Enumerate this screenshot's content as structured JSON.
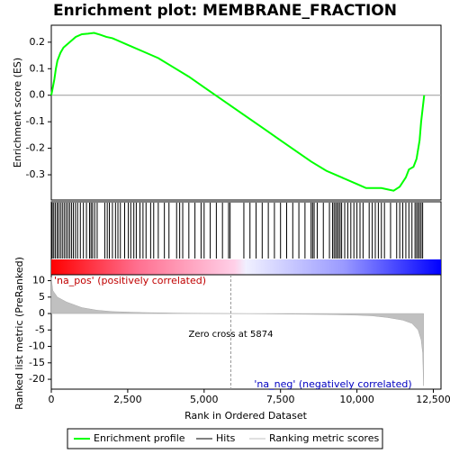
{
  "chart_data": [
    {
      "type": "line",
      "title": "Enrichment plot: MEMBRANE_FRACTION",
      "ylabel": "Enrichment score (ES)",
      "color": "#00ff00",
      "x": [
        0,
        50,
        100,
        150,
        200,
        300,
        400,
        600,
        800,
        1000,
        1200,
        1400,
        1600,
        1800,
        2000,
        2500,
        3000,
        3500,
        4000,
        4500,
        5000,
        5500,
        6000,
        6500,
        7000,
        7500,
        8000,
        8500,
        9000,
        9500,
        10000,
        10300,
        10500,
        10800,
        11000,
        11200,
        11400,
        11600,
        11700,
        11850,
        11950,
        12050,
        12100,
        12150,
        12200
      ],
      "values": [
        0,
        0.03,
        0.06,
        0.1,
        0.13,
        0.16,
        0.18,
        0.2,
        0.22,
        0.23,
        0.232,
        0.235,
        0.228,
        0.22,
        0.215,
        0.19,
        0.165,
        0.14,
        0.105,
        0.07,
        0.03,
        -0.01,
        -0.05,
        -0.09,
        -0.13,
        -0.17,
        -0.21,
        -0.25,
        -0.285,
        -0.31,
        -0.335,
        -0.35,
        -0.35,
        -0.35,
        -0.355,
        -0.36,
        -0.345,
        -0.31,
        -0.28,
        -0.27,
        -0.24,
        -0.17,
        -0.1,
        -0.05,
        0
      ],
      "xlim": [
        0,
        12750
      ],
      "ylim": [
        -0.395,
        0.264
      ],
      "yticks": [
        0.2,
        0.1,
        {
          "value": 0,
          "label": "0.0"
        },
        -0.1,
        -0.2,
        -0.3
      ]
    },
    {
      "type": "hits",
      "name": "Hits",
      "color": "#000000",
      "x": [
        30,
        80,
        130,
        190,
        240,
        300,
        360,
        420,
        480,
        540,
        600,
        660,
        720,
        790,
        860,
        950,
        1050,
        1150,
        1250,
        1300,
        1350,
        1420,
        1500,
        1750,
        1830,
        1900,
        2000,
        2100,
        2180,
        2260,
        2400,
        2520,
        2600,
        2700,
        2780,
        2900,
        3000,
        3100,
        3250,
        3350,
        3500,
        3700,
        3850,
        4100,
        4200,
        4300,
        4500,
        4700,
        4900,
        5000,
        5200,
        5400,
        5600,
        5800,
        5850,
        6300,
        6500,
        6700,
        6900,
        7100,
        7300,
        7500,
        7700,
        7900,
        8100,
        8300,
        8500,
        8550,
        8600,
        8700,
        8900,
        9100,
        9200,
        9250,
        9300,
        9350,
        9400,
        9450,
        9500,
        9600,
        9700,
        9800,
        9900,
        10000,
        10100,
        10200,
        10400,
        10500,
        10600,
        10700,
        10800,
        10900,
        11100,
        11300,
        11400,
        11500,
        11600,
        11700,
        11800,
        11900,
        11950,
        12000,
        12050,
        12100,
        12150
      ]
    },
    {
      "type": "area",
      "ylabel": "Ranked list metric (PreRanked)",
      "xlabel": "Rank in Ordered Dataset",
      "color": "#c0c0c0",
      "x": [
        0,
        50,
        200,
        500,
        1000,
        1500,
        2000,
        3000,
        4000,
        5000,
        5874,
        7000,
        8000,
        9000,
        10000,
        10500,
        11000,
        11500,
        11800,
        12000,
        12100,
        12150,
        12180
      ],
      "values": [
        11,
        7,
        5,
        3.5,
        1.8,
        1,
        0.6,
        0.3,
        0.15,
        0.05,
        0,
        -0.1,
        -0.2,
        -0.3,
        -0.5,
        -0.7,
        -1.2,
        -2,
        -3,
        -5,
        -8,
        -12,
        -22
      ],
      "xlim": [
        0,
        12750
      ],
      "ylim": [
        -23,
        11.8
      ],
      "yticks": [
        10,
        5,
        0,
        -5,
        -10,
        -15,
        -20
      ],
      "xticks": [
        0,
        {
          "value": 2500,
          "label": "2,500"
        },
        {
          "value": 5000,
          "label": "5,000"
        },
        {
          "value": 7500,
          "label": "7,500"
        },
        {
          "value": 10000,
          "label": "10,000"
        },
        {
          "value": 12500,
          "label": "12,500"
        }
      ],
      "zero_cross": 5874,
      "zero_cross_label": "Zero cross at 5874",
      "pos_label": "'na_pos' (positively correlated)",
      "neg_label": "'na_neg' (negatively correlated)"
    }
  ],
  "legend": [
    "Enrichment profile",
    "Hits",
    "Ranking metric scores"
  ]
}
